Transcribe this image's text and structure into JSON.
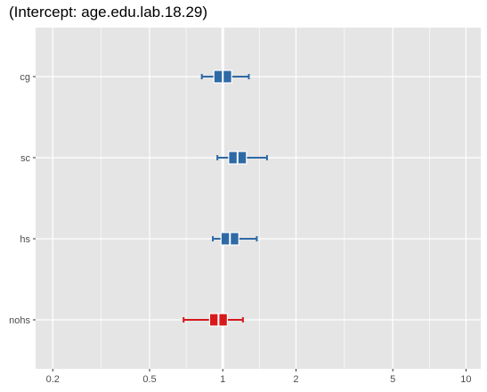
{
  "chart_data": {
    "type": "forest",
    "title": "(Intercept: age.edu.lab.18.29)",
    "x_scale": "log",
    "xlim": [
      0.17,
      11.5
    ],
    "x_ticks": [
      0.2,
      0.5,
      1,
      2,
      5,
      10
    ],
    "x_tick_labels": [
      "0.2",
      "0.5",
      "1",
      "2",
      "5",
      "10"
    ],
    "reference_line": 1,
    "categories": [
      "cg",
      "sc",
      "hs",
      "nohs"
    ],
    "series": [
      {
        "category": "cg",
        "estimate": 1.0,
        "lower": 0.82,
        "upper": 1.28,
        "color": "#2e6aa6"
      },
      {
        "category": "sc",
        "estimate": 1.15,
        "lower": 0.95,
        "upper": 1.52,
        "color": "#2e6aa6"
      },
      {
        "category": "hs",
        "estimate": 1.07,
        "lower": 0.91,
        "upper": 1.38,
        "color": "#2e6aa6"
      },
      {
        "category": "nohs",
        "estimate": 0.96,
        "lower": 0.69,
        "upper": 1.21,
        "color": "#d7191c"
      }
    ],
    "grid": true,
    "background": "#e5e5e5",
    "grid_color": "#ffffff"
  }
}
